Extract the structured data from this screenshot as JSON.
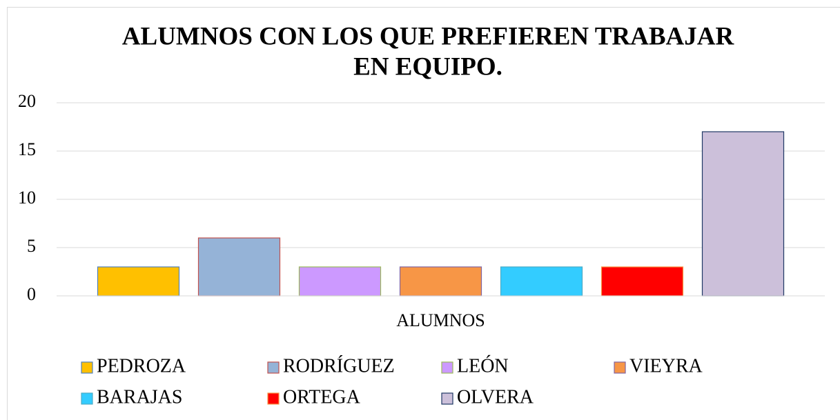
{
  "chart_data": {
    "type": "bar",
    "title": [
      "ALUMNOS CON LOS QUE PREFIEREN TRABAJAR",
      "EN EQUIPO."
    ],
    "categories": [
      "ALUMNOS"
    ],
    "series": [
      {
        "name": "PEDROZA",
        "color": "#ffc000",
        "edgecolor": "#4f81bd",
        "values": [
          3
        ]
      },
      {
        "name": "RODRÍGUEZ",
        "color": "#95b3d7",
        "edgecolor": "#c0504d",
        "values": [
          6
        ]
      },
      {
        "name": "LEÓN",
        "color": "#cc99ff",
        "edgecolor": "#9bbb59",
        "values": [
          3
        ]
      },
      {
        "name": "VIEYRA",
        "color": "#f79646",
        "edgecolor": "#8064a2",
        "values": [
          3
        ]
      },
      {
        "name": "BARAJAS",
        "color": "#33ccff",
        "edgecolor": "#4bacc6",
        "values": [
          3
        ]
      },
      {
        "name": "ORTEGA",
        "color": "#ff0000",
        "edgecolor": "#f79646",
        "values": [
          3
        ]
      },
      {
        "name": "OLVERA",
        "color": "#ccc0da",
        "edgecolor": "#1f3864",
        "values": [
          17
        ]
      }
    ],
    "ylim": [
      0,
      20
    ],
    "yticks": [
      0,
      5,
      10,
      15,
      20
    ],
    "grid": true,
    "legend": "bottom"
  }
}
